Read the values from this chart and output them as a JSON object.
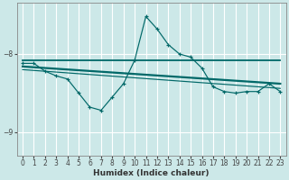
{
  "xlabel": "Humidex (Indice chaleur)",
  "background_color": "#cce8e8",
  "grid_color": "#ffffff",
  "line_color": "#006868",
  "xlim": [
    -0.5,
    23.5
  ],
  "ylim": [
    -9.3,
    -7.35
  ],
  "yticks": [
    -9,
    -8
  ],
  "xticks": [
    0,
    1,
    2,
    3,
    4,
    5,
    6,
    7,
    8,
    9,
    10,
    11,
    12,
    13,
    14,
    15,
    16,
    17,
    18,
    19,
    20,
    21,
    22,
    23
  ],
  "series1_x": [
    0,
    1,
    2,
    3,
    4,
    5,
    6,
    7,
    8,
    9,
    10,
    11,
    12,
    13,
    14,
    15,
    16,
    17,
    18,
    19,
    20,
    21,
    22,
    23
  ],
  "series1_y": [
    -8.12,
    -8.12,
    -8.22,
    -8.28,
    -8.32,
    -8.5,
    -8.68,
    -8.72,
    -8.55,
    -8.38,
    -8.08,
    -7.52,
    -7.68,
    -7.88,
    -8.0,
    -8.04,
    -8.18,
    -8.42,
    -8.48,
    -8.5,
    -8.48,
    -8.48,
    -8.38,
    -8.48
  ],
  "line1_x": [
    0,
    23
  ],
  "line1_y": [
    -8.08,
    -8.08
  ],
  "line2_x": [
    0,
    23
  ],
  "line2_y": [
    -8.16,
    -8.38
  ],
  "line3_x": [
    0,
    23
  ],
  "line3_y": [
    -8.2,
    -8.44
  ]
}
